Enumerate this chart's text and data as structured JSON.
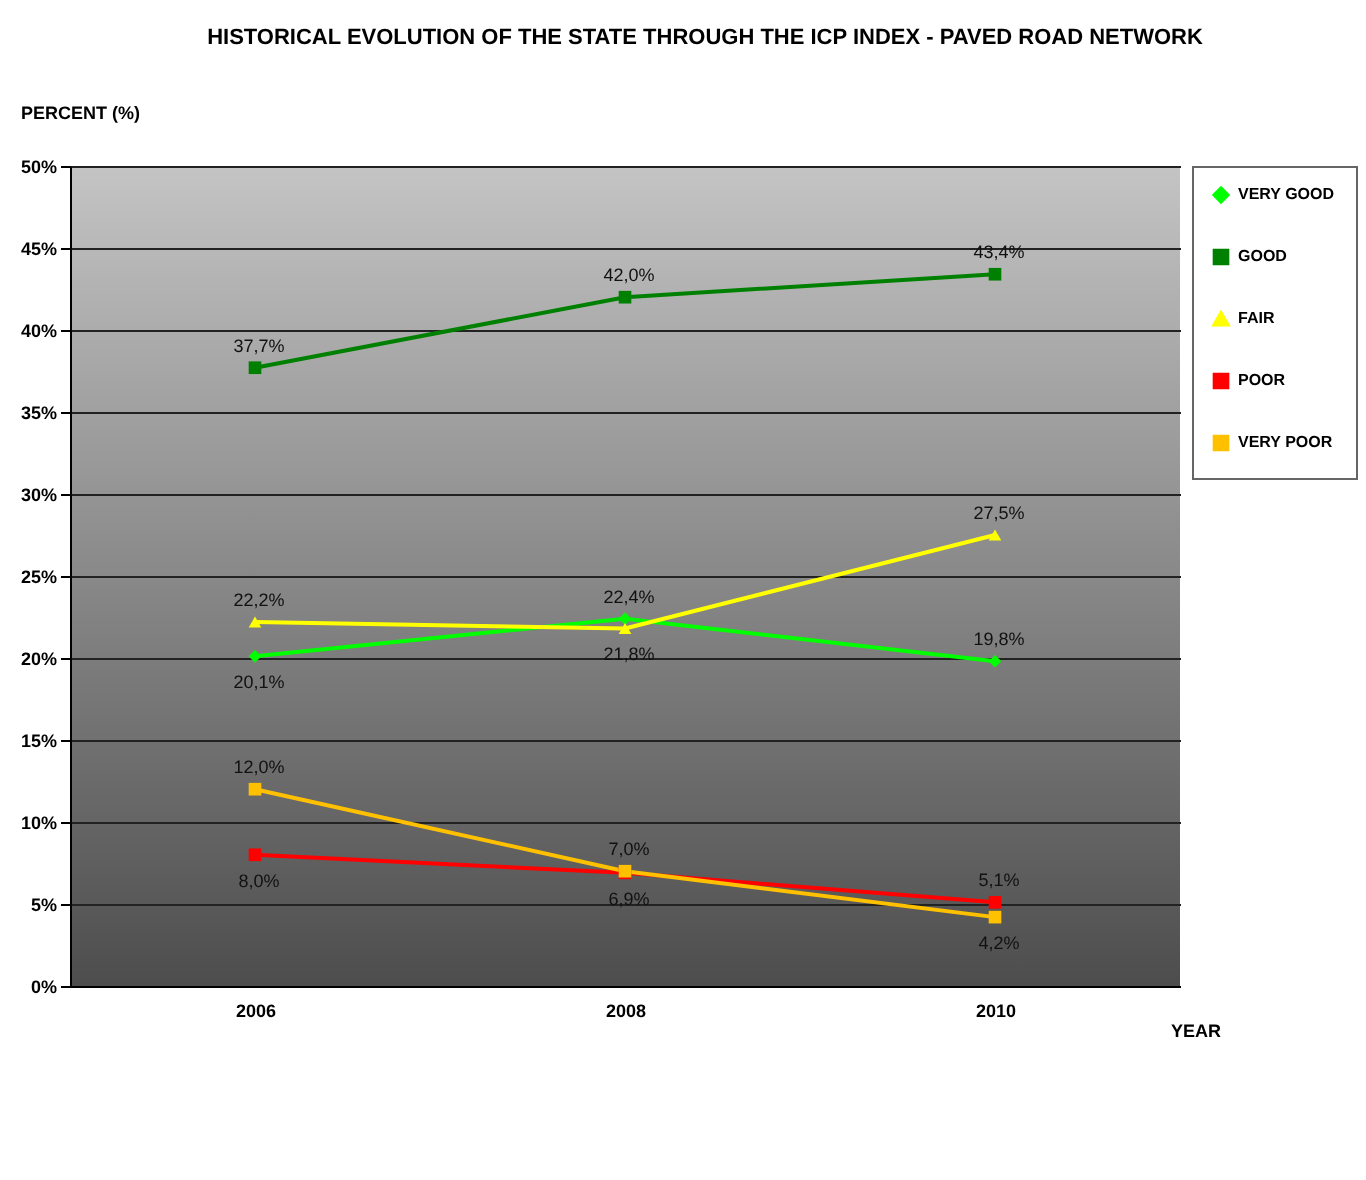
{
  "chart_data": {
    "type": "line",
    "title": "HISTORICAL EVOLUTION OF THE STATE THROUGH THE ICP INDEX - PAVED ROAD NETWORK",
    "xlabel": "YEAR",
    "ylabel": "PERCENT (%)",
    "categories": [
      "2006",
      "2008",
      "2010"
    ],
    "series": [
      {
        "name": "VERY GOOD",
        "color": "#00ff00",
        "marker": "diamond",
        "values": [
          20.1,
          22.4,
          19.8
        ],
        "value_labels": [
          "20,1%",
          "22,4%",
          "19,8%"
        ]
      },
      {
        "name": "GOOD",
        "color": "#008000",
        "marker": "square",
        "values": [
          37.7,
          42.0,
          43.4
        ],
        "value_labels": [
          "37,7%",
          "42,0%",
          "43,4%"
        ]
      },
      {
        "name": "FAIR",
        "color": "#ffff00",
        "marker": "triangle",
        "values": [
          22.2,
          21.8,
          27.5
        ],
        "value_labels": [
          "22,2%",
          "21,8%",
          "27,5%"
        ]
      },
      {
        "name": "POOR",
        "color": "#ff0000",
        "marker": "square",
        "values": [
          8.0,
          6.9,
          5.1
        ],
        "value_labels": [
          "8,0%",
          "6,9%",
          "5,1%"
        ]
      },
      {
        "name": "VERY POOR",
        "color": "#ffc000",
        "marker": "square",
        "values": [
          12.0,
          7.0,
          4.2
        ],
        "value_labels": [
          "12,0%",
          "7,0%",
          "4,2%"
        ]
      }
    ],
    "ylim": [
      0,
      50
    ],
    "yticks": [
      {
        "value": 0,
        "label": "0%"
      },
      {
        "value": 5,
        "label": "5%"
      },
      {
        "value": 10,
        "label": "10%"
      },
      {
        "value": 15,
        "label": "15%"
      },
      {
        "value": 20,
        "label": "20%"
      },
      {
        "value": 25,
        "label": "25%"
      },
      {
        "value": 30,
        "label": "30%"
      },
      {
        "value": 35,
        "label": "35%"
      },
      {
        "value": 40,
        "label": "40%"
      },
      {
        "value": 45,
        "label": "45%"
      },
      {
        "value": 50,
        "label": "50%"
      }
    ],
    "grid": "y",
    "legend": "right",
    "line_style": "solid"
  }
}
